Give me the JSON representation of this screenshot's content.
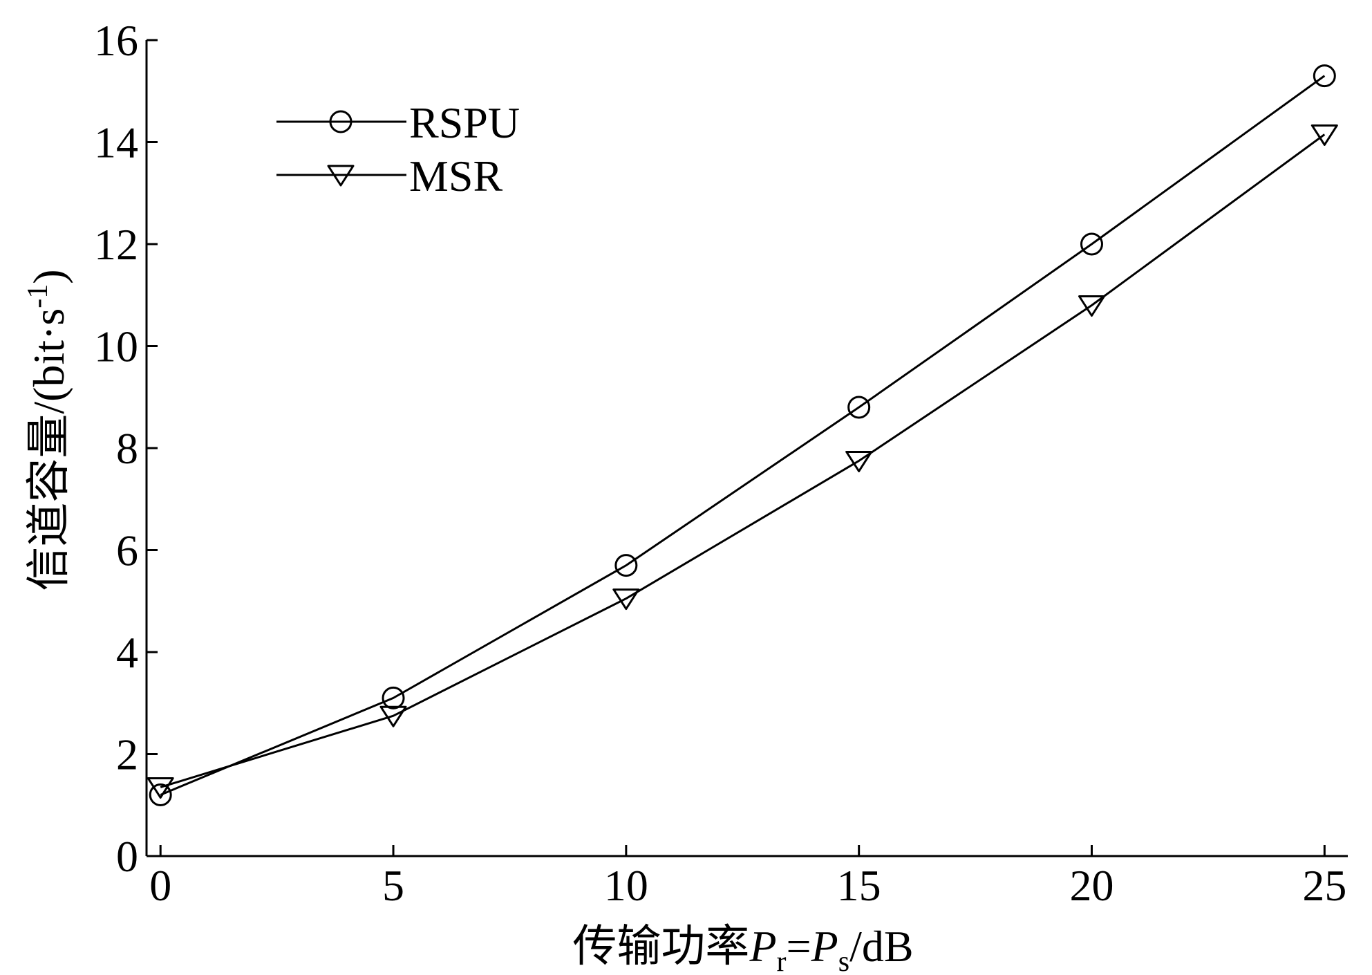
{
  "chart_data": {
    "type": "line",
    "title": "",
    "xlabel": {
      "main": "传输功率",
      "p1": "P",
      "p1_sub": "r",
      "eq": "=",
      "p2": "P",
      "p2_sub": "s",
      "unit": "/dB"
    },
    "ylabel": {
      "main": "信道容量/(bit·s",
      "sup": "-1",
      "close": ")"
    },
    "x": [
      0,
      5,
      10,
      15,
      20,
      25
    ],
    "xlim": [
      -0.3,
      25.5
    ],
    "ylim": [
      0,
      16
    ],
    "xticks": [
      0,
      5,
      10,
      15,
      20,
      25
    ],
    "yticks": [
      0,
      2,
      4,
      6,
      8,
      10,
      12,
      14,
      16
    ],
    "grid": false,
    "legend_position": "top-left",
    "series": [
      {
        "name": "RSPU",
        "marker": "circle",
        "color": "#000000",
        "values": [
          1.2,
          3.1,
          5.7,
          8.8,
          12.0,
          15.3
        ]
      },
      {
        "name": "MSR",
        "marker": "triangle-down",
        "color": "#000000",
        "values": [
          1.35,
          2.75,
          5.05,
          7.75,
          10.8,
          14.15
        ]
      }
    ]
  }
}
